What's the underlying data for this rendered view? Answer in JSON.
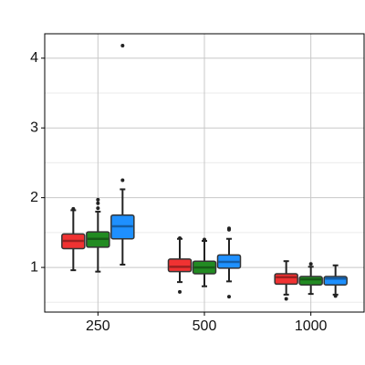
{
  "chart_data": {
    "type": "box",
    "categories": [
      "250",
      "500",
      "1000"
    ],
    "ylim": [
      0.36,
      4.35
    ],
    "yticks": [
      1,
      2,
      3,
      4
    ],
    "grid": true,
    "minor_grid": true,
    "series": [
      {
        "color": "#f03232",
        "values": [
          {
            "whisker_low": 0.96,
            "q1": 1.27,
            "median": 1.38,
            "q3": 1.48,
            "whisker_high": 1.82,
            "outliers": [
              1.84
            ]
          },
          {
            "whisker_low": 0.79,
            "q1": 0.94,
            "median": 1.01,
            "q3": 1.12,
            "whisker_high": 1.41,
            "outliers": [
              1.42,
              0.65
            ]
          },
          {
            "whisker_low": 0.61,
            "q1": 0.76,
            "median": 0.86,
            "q3": 0.91,
            "whisker_high": 1.09,
            "outliers": [
              0.55
            ]
          }
        ]
      },
      {
        "color": "#228b22",
        "values": [
          {
            "whisker_low": 0.94,
            "q1": 1.29,
            "median": 1.41,
            "q3": 1.51,
            "whisker_high": 1.8,
            "outliers": [
              1.97,
              1.92,
              1.85
            ]
          },
          {
            "whisker_low": 0.73,
            "q1": 0.91,
            "median": 1.0,
            "q3": 1.09,
            "whisker_high": 1.38,
            "outliers": [
              1.4
            ]
          },
          {
            "whisker_low": 0.62,
            "q1": 0.75,
            "median": 0.83,
            "q3": 0.87,
            "whisker_high": 1.01,
            "outliers": [
              1.05
            ]
          }
        ]
      },
      {
        "color": "#1e90ff",
        "values": [
          {
            "whisker_low": 1.04,
            "q1": 1.41,
            "median": 1.59,
            "q3": 1.75,
            "whisker_high": 2.12,
            "outliers": [
              4.18,
              2.25
            ]
          },
          {
            "whisker_low": 0.8,
            "q1": 0.99,
            "median": 1.08,
            "q3": 1.18,
            "whisker_high": 1.41,
            "outliers": [
              1.56,
              1.54,
              0.58
            ]
          },
          {
            "whisker_low": 0.61,
            "q1": 0.75,
            "median": 0.84,
            "q3": 0.87,
            "whisker_high": 1.03,
            "outliers": [
              0.59
            ]
          }
        ]
      }
    ]
  }
}
